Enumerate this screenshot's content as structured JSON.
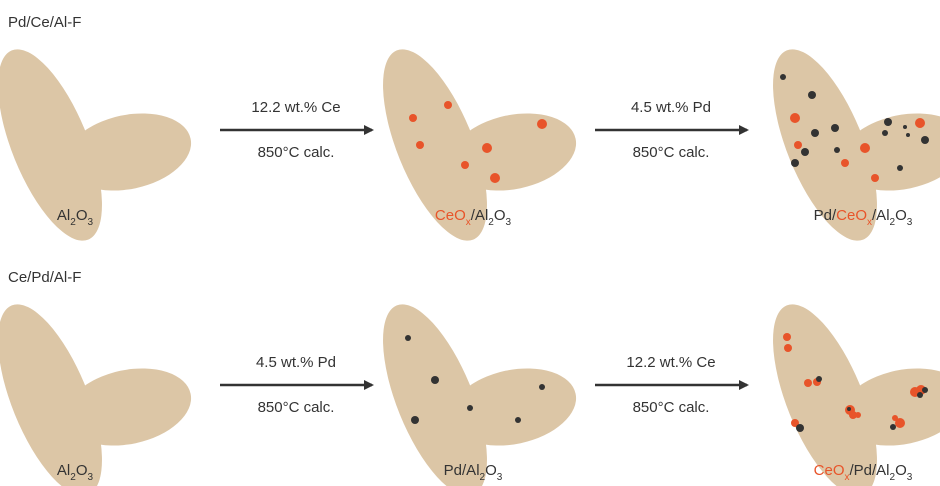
{
  "rows": [
    {
      "title": "Pd/Ce/Al-F",
      "steps": [
        {
          "reagent": "12.2 wt.% Ce",
          "condition": "850°C calc."
        },
        {
          "reagent": "4.5 wt.% Pd",
          "condition": "850°C calc."
        }
      ],
      "stages": [
        {
          "label": [
            {
              "text": "Al"
            },
            {
              "text": "2",
              "sub": true
            },
            {
              "text": "O"
            },
            {
              "text": "3",
              "sub": true
            }
          ]
        },
        {
          "label": [
            {
              "text": "CeO",
              "color": "#e8542a"
            },
            {
              "text": "x",
              "sub": true,
              "color": "#e8542a"
            },
            {
              "text": "/Al"
            },
            {
              "text": "2",
              "sub": true
            },
            {
              "text": "O"
            },
            {
              "text": "3",
              "sub": true
            }
          ]
        },
        {
          "label": [
            {
              "text": "Pd/"
            },
            {
              "text": "CeO",
              "color": "#e8542a"
            },
            {
              "text": "x",
              "sub": true,
              "color": "#e8542a"
            },
            {
              "text": "/Al"
            },
            {
              "text": "2",
              "sub": true
            },
            {
              "text": "O"
            },
            {
              "text": "3",
              "sub": true
            }
          ]
        }
      ]
    },
    {
      "title": "Ce/Pd/Al-F",
      "steps": [
        {
          "reagent": "4.5 wt.% Pd",
          "condition": "850°C calc."
        },
        {
          "reagent": "12.2 wt.% Ce",
          "condition": "850°C calc."
        }
      ],
      "stages": [
        {
          "label": [
            {
              "text": "Al"
            },
            {
              "text": "2",
              "sub": true
            },
            {
              "text": "O"
            },
            {
              "text": "3",
              "sub": true
            }
          ]
        },
        {
          "label": [
            {
              "text": "Pd/Al"
            },
            {
              "text": "2",
              "sub": true
            },
            {
              "text": "O"
            },
            {
              "text": "3",
              "sub": true
            }
          ]
        },
        {
          "label": [
            {
              "text": "CeO",
              "color": "#e8542a"
            },
            {
              "text": "x",
              "sub": true,
              "color": "#e8542a"
            },
            {
              "text": "/Pd/Al"
            },
            {
              "text": "2",
              "sub": true
            },
            {
              "text": "O"
            },
            {
              "text": "3",
              "sub": true
            }
          ]
        }
      ]
    }
  ]
}
